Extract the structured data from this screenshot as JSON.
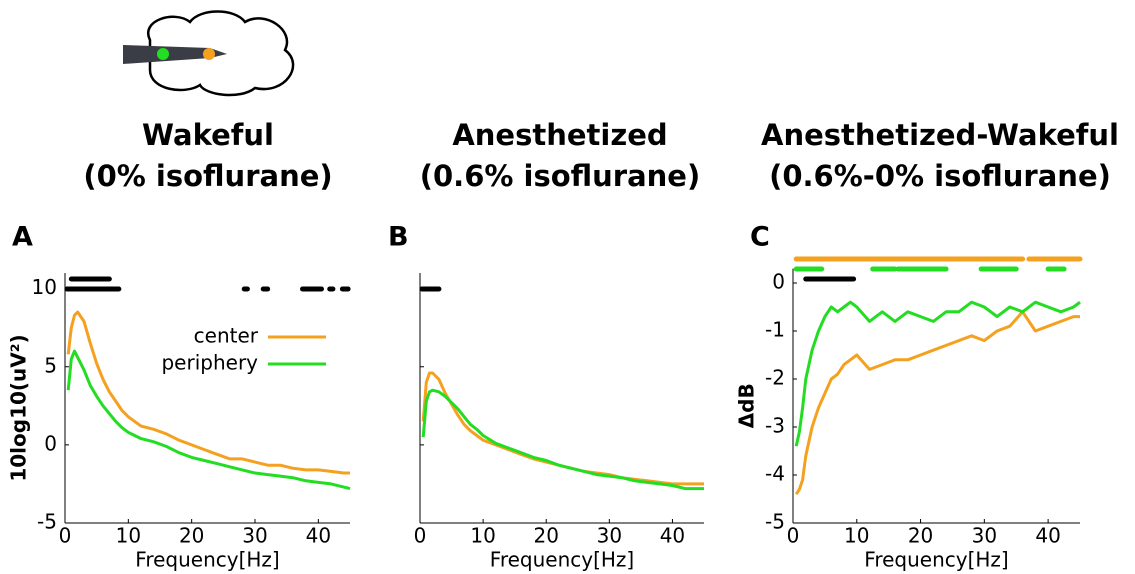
{
  "chart_data": [
    {
      "type": "line",
      "panel_label": "A",
      "title": "Wakeful",
      "subtitle": "(0% isoflurane)",
      "xlabel": "Frequency[Hz]",
      "ylabel": "10log10(uV²)",
      "xlim": [
        0,
        45
      ],
      "ylim": [
        -5,
        11
      ],
      "xticks": [
        0,
        10,
        20,
        30,
        40
      ],
      "yticks": [
        -5,
        0,
        5,
        10
      ],
      "legend": "upper right",
      "x": [
        0.5,
        1,
        1.5,
        2,
        3,
        4,
        5,
        6,
        7,
        8,
        9,
        10,
        12,
        14,
        16,
        18,
        20,
        22,
        24,
        26,
        28,
        30,
        32,
        34,
        36,
        38,
        40,
        42,
        44,
        45
      ],
      "series": [
        {
          "name": "center",
          "color": "#f5a01e",
          "values": [
            5.8,
            7.5,
            8.3,
            8.5,
            7.9,
            6.5,
            5.2,
            4.2,
            3.4,
            2.8,
            2.2,
            1.8,
            1.2,
            1.0,
            0.7,
            0.3,
            0.0,
            -0.3,
            -0.6,
            -0.9,
            -0.9,
            -1.1,
            -1.3,
            -1.3,
            -1.5,
            -1.6,
            -1.6,
            -1.7,
            -1.8,
            -1.8
          ]
        },
        {
          "name": "periphery",
          "color": "#22dd22",
          "values": [
            3.5,
            5.5,
            6.0,
            5.6,
            4.8,
            3.8,
            3.1,
            2.5,
            2.0,
            1.5,
            1.1,
            0.8,
            0.4,
            0.2,
            -0.1,
            -0.5,
            -0.8,
            -1.0,
            -1.2,
            -1.4,
            -1.6,
            -1.8,
            -1.9,
            -2.0,
            -2.1,
            -2.3,
            -2.4,
            -2.5,
            -2.7,
            -2.8
          ]
        }
      ],
      "significance": [
        {
          "color": "#000000",
          "ranges": [
            [
              0.3,
              8.5
            ],
            [
              28.3,
              28.8
            ],
            [
              31.3,
              32
            ],
            [
              37.5,
              40.5
            ],
            [
              41.8,
              42.3
            ],
            [
              43.8,
              44.7
            ]
          ]
        },
        {
          "color": "#000000",
          "ranges": [
            [
              1,
              7
            ]
          ]
        }
      ]
    },
    {
      "type": "line",
      "panel_label": "B",
      "title": "Anesthetized",
      "subtitle": "(0.6% isoflurane)",
      "xlabel": "Frequency[Hz]",
      "xlim": [
        0,
        45
      ],
      "ylim": [
        -5,
        11
      ],
      "xticks": [
        0,
        10,
        20,
        30,
        40
      ],
      "yticks": [
        -5,
        0,
        5,
        10
      ],
      "x": [
        0.5,
        1,
        1.5,
        2,
        3,
        4,
        5,
        6,
        7,
        8,
        9,
        10,
        12,
        14,
        16,
        18,
        20,
        22,
        24,
        26,
        28,
        30,
        32,
        34,
        36,
        38,
        40,
        42,
        44,
        45
      ],
      "series": [
        {
          "name": "center",
          "color": "#f5a01e",
          "values": [
            1.5,
            4.0,
            4.6,
            4.6,
            4.2,
            3.3,
            2.6,
            1.9,
            1.3,
            0.9,
            0.6,
            0.3,
            0.0,
            -0.3,
            -0.6,
            -0.9,
            -1.1,
            -1.3,
            -1.5,
            -1.7,
            -1.8,
            -1.9,
            -2.1,
            -2.2,
            -2.3,
            -2.4,
            -2.5,
            -2.5,
            -2.5,
            -2.5
          ]
        },
        {
          "name": "periphery",
          "color": "#22dd22",
          "values": [
            0.5,
            2.8,
            3.4,
            3.5,
            3.4,
            3.1,
            2.7,
            2.3,
            1.8,
            1.3,
            1.0,
            0.6,
            0.1,
            -0.2,
            -0.5,
            -0.8,
            -1.0,
            -1.3,
            -1.5,
            -1.7,
            -1.9,
            -2.0,
            -2.1,
            -2.3,
            -2.4,
            -2.5,
            -2.6,
            -2.8,
            -2.8,
            -2.8
          ]
        }
      ],
      "significance": [
        {
          "color": "#000000",
          "ranges": [
            [
              0.3,
              3
            ]
          ]
        }
      ]
    },
    {
      "type": "line",
      "panel_label": "C",
      "title": "Anesthetized-Wakeful",
      "subtitle": "(0.6%-0% isoflurane)",
      "xlabel": "Frequency[Hz]",
      "ylabel": "ΔdB",
      "xlim": [
        0,
        45
      ],
      "ylim": [
        -5,
        0.3
      ],
      "xticks": [
        0,
        10,
        20,
        30,
        40
      ],
      "yticks": [
        -5,
        -4,
        -3,
        -2,
        -1,
        0
      ],
      "x": [
        0.5,
        1,
        1.5,
        2,
        3,
        4,
        5,
        6,
        7,
        8,
        9,
        10,
        12,
        14,
        16,
        18,
        20,
        22,
        24,
        26,
        28,
        30,
        32,
        34,
        36,
        38,
        40,
        42,
        44,
        45
      ],
      "series": [
        {
          "name": "center",
          "color": "#f5a01e",
          "values": [
            -4.4,
            -4.3,
            -4.1,
            -3.6,
            -3.0,
            -2.6,
            -2.3,
            -2.0,
            -1.9,
            -1.7,
            -1.6,
            -1.5,
            -1.8,
            -1.7,
            -1.6,
            -1.6,
            -1.5,
            -1.4,
            -1.3,
            -1.2,
            -1.1,
            -1.2,
            -1.0,
            -0.9,
            -0.6,
            -1.0,
            -0.9,
            -0.8,
            -0.7,
            -0.7
          ]
        },
        {
          "name": "periphery",
          "color": "#22dd22",
          "values": [
            -3.4,
            -3.1,
            -2.6,
            -2.0,
            -1.4,
            -1.0,
            -0.7,
            -0.5,
            -0.6,
            -0.5,
            -0.4,
            -0.5,
            -0.8,
            -0.6,
            -0.8,
            -0.6,
            -0.7,
            -0.8,
            -0.6,
            -0.6,
            -0.4,
            -0.5,
            -0.7,
            -0.5,
            -0.6,
            -0.4,
            -0.5,
            -0.6,
            -0.5,
            -0.4
          ]
        }
      ],
      "significance": [
        {
          "color": "#000000",
          "ranges": [
            [
              2,
              9.5
            ]
          ]
        },
        {
          "color": "#22dd22",
          "ranges": [
            [
              0.5,
              4.5
            ],
            [
              12.5,
              16
            ],
            [
              16.5,
              24
            ],
            [
              29.5,
              35
            ],
            [
              40,
              42.5
            ]
          ]
        },
        {
          "color": "#f5a01e",
          "ranges": [
            [
              0.5,
              36
            ],
            [
              37,
              45
            ]
          ]
        }
      ]
    }
  ]
}
